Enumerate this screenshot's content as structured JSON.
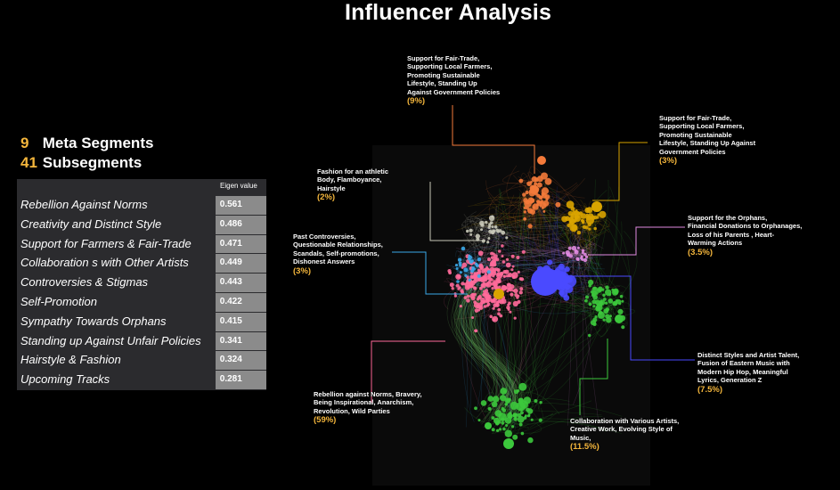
{
  "title": "Influencer Analysis",
  "counts": {
    "meta_value": "9",
    "meta_label": "Meta Segments",
    "sub_value": "41",
    "sub_label": "Subsegments"
  },
  "table": {
    "header": "Eigen value",
    "rows": [
      {
        "label": "Rebellion Against  Norms",
        "value": "0.561"
      },
      {
        "label": "Creativity and Distinct Style",
        "value": "0.486"
      },
      {
        "label": "Support for Farmers & Fair-Trade",
        "value": "0.471"
      },
      {
        "label": "Collaboration s with Other Artists",
        "value": "0.449"
      },
      {
        "label": "Controversies & Stigmas",
        "value": "0.443"
      },
      {
        "label": "Self-Promotion",
        "value": "0.422"
      },
      {
        "label": "Sympathy Towards Orphans",
        "value": "0.415"
      },
      {
        "label": "Standing up Against Unfair Policies",
        "value": "0.341"
      },
      {
        "label": "Hairstyle & Fashion",
        "value": "0.324"
      },
      {
        "label": "Upcoming Tracks",
        "value": "0.281"
      }
    ]
  },
  "annotations": {
    "fairtrade_top": {
      "text": "Support for Fair-Trade,\nSupporting Local Farmers,\nPromoting Sustainable\nLifestyle, Standing Up\nAgainst  Government Policies",
      "pct": "(9%)",
      "color": "#f47a3a"
    },
    "fairtrade_right": {
      "text": "Support for Fair-Trade,\nSupporting Local Farmers,\nPromoting Sustainable\nLifestyle, Standing Up Against\nGovernment Policies",
      "pct": "(3%)",
      "color": "#d9a400"
    },
    "fashion": {
      "text": "Fashion for an athletic\nBody, Flamboyance,\nHairstyle",
      "pct": "(2%)",
      "color": "#c8c8b8"
    },
    "orphans": {
      "text": "Support for the Orphans,\nFinancial Donations to Orphanages,\nLoss of his Parents ,  Heart-\nWarming  Actions",
      "pct": "(3.5%)",
      "color": "#e08ae0"
    },
    "controversies": {
      "text": "Past Controversies,\nQuestionable Relationships,\nScandals, Self-promotions,\nDishonest Answers",
      "pct": "(3%)",
      "color": "#3aa8e8"
    },
    "distinct": {
      "text": "Distinct Styles and Artist Talent,\nFusion of Eastern Music with\nModern Hip Hop, Meaningful\nLyrics, Generation Z",
      "pct": "(7.5%)",
      "color": "#4a4aff"
    },
    "rebellion": {
      "text": "Rebellion against Norms, Bravery,\nBeing Inspirational, Anarchism,\nRevolution, Wild Parties",
      "pct": "(59%)",
      "color": "#ff6a9a"
    },
    "collaboration": {
      "text": "Collaboration with Various Artists,\nCreative Work, Evolving Style of\nMusic,",
      "pct": "(11.5%)",
      "color": "#3cc83c"
    }
  }
}
